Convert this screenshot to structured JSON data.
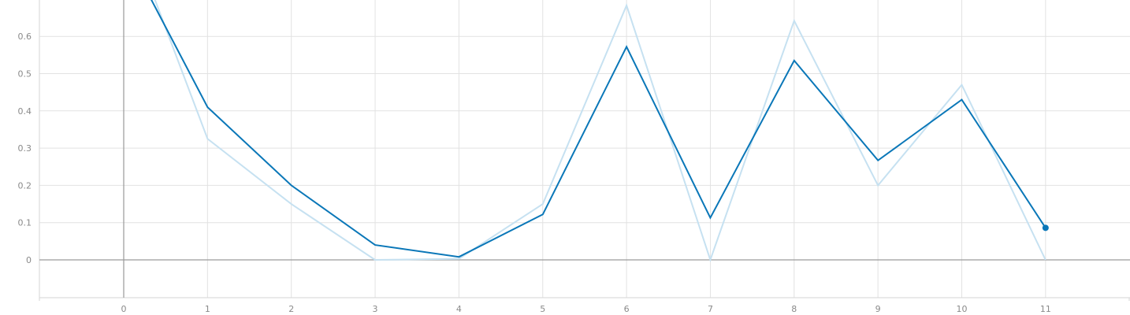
{
  "chart_data": {
    "type": "line",
    "title": "",
    "xlabel": "",
    "ylabel": "",
    "xlim": [
      -1,
      12
    ],
    "ylim": [
      -0.1,
      0.7
    ],
    "x_ticks": [
      "0",
      "1",
      "2",
      "3",
      "4",
      "5",
      "6",
      "7",
      "8",
      "9",
      "10",
      "11"
    ],
    "y_ticks": [
      "0",
      "0.1",
      "0.2",
      "0.3",
      "0.4",
      "0.5",
      "0.6"
    ],
    "grid": true,
    "x": [
      0,
      1,
      2,
      3,
      4,
      5,
      6,
      7,
      8,
      9,
      10,
      11
    ],
    "series": [
      {
        "role": "raw",
        "color": "#c6e1f1",
        "values": [
          0.92,
          0.325,
          0.15,
          0.0,
          0.003,
          0.15,
          0.683,
          0.0,
          0.642,
          0.2,
          0.47,
          0.0
        ]
      },
      {
        "role": "smoothed",
        "color": "#0a77b8",
        "values": [
          0.84,
          0.41,
          0.2,
          0.04,
          0.008,
          0.122,
          0.572,
          0.113,
          0.535,
          0.267,
          0.43,
          0.086
        ]
      }
    ],
    "end_marker_series": "smoothed"
  }
}
